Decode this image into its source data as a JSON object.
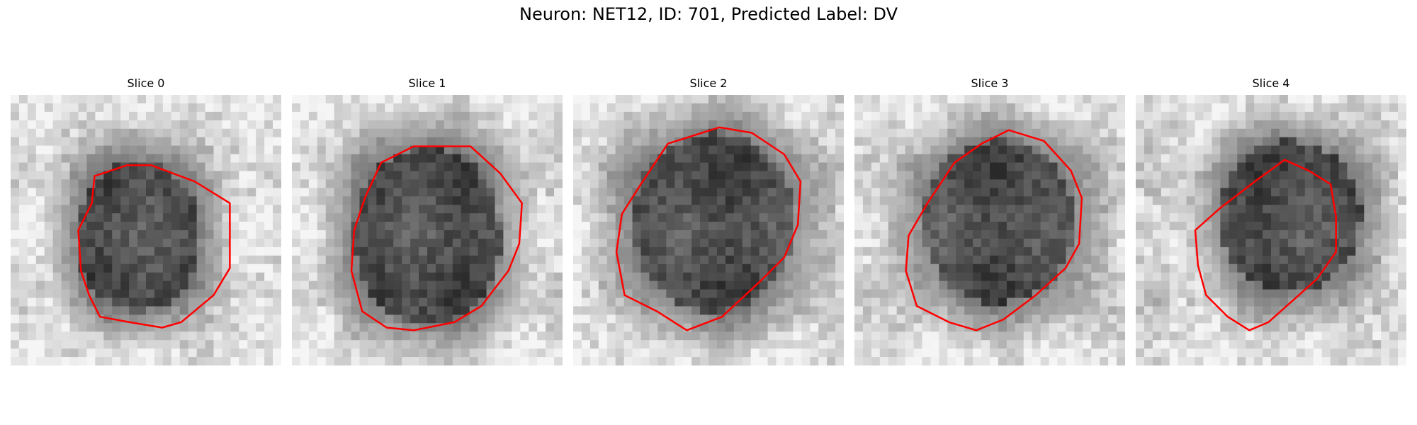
{
  "figure": {
    "title": "Neuron: NET12, ID: 701, Predicted Label: DV"
  },
  "panels": [
    {
      "title": "Slice 0"
    },
    {
      "title": "Slice 1"
    },
    {
      "title": "Slice 2"
    },
    {
      "title": "Slice 3"
    },
    {
      "title": "Slice 4"
    }
  ],
  "colors": {
    "contour": "#ff0000",
    "background": "#ffffff"
  }
}
